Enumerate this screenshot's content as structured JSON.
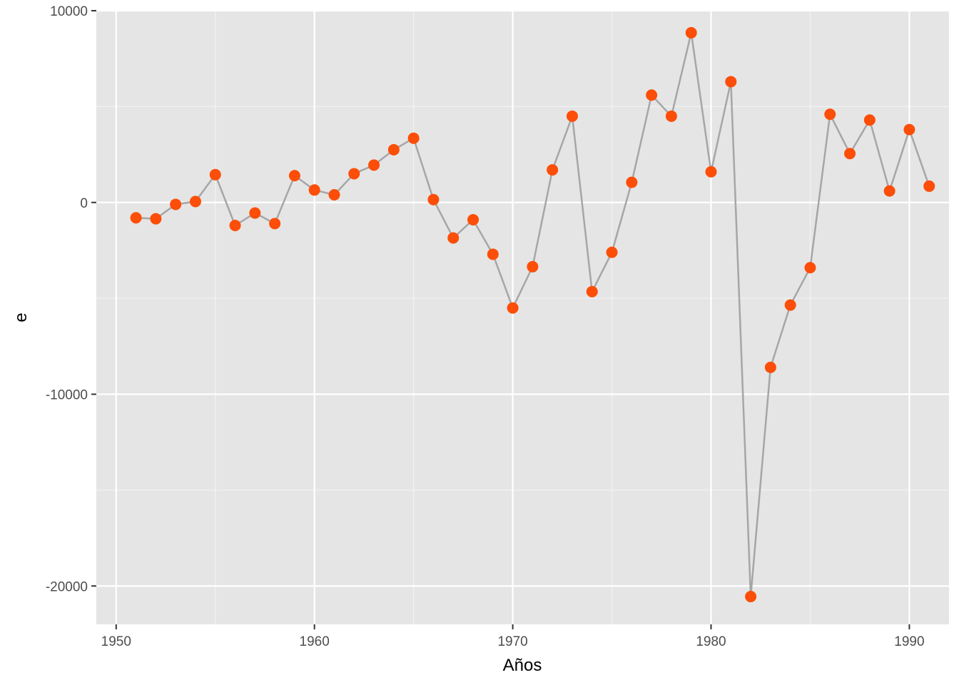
{
  "chart_data": {
    "type": "line",
    "title": "",
    "xlabel": "Años",
    "ylabel": "e",
    "xlim": [
      1949,
      1992
    ],
    "ylim": [
      -22000,
      10000
    ],
    "x_ticks": [
      1950,
      1960,
      1970,
      1980,
      1990
    ],
    "x_tick_labels": [
      "1950",
      "1960",
      "1970",
      "1980",
      "1990"
    ],
    "y_ticks": [
      10000,
      0,
      -10000,
      -20000
    ],
    "y_tick_labels": [
      "10000",
      "0",
      "-10000",
      "-20000"
    ],
    "grid": true,
    "line_color": "#a6a6a6",
    "point_color": "#fc4e08",
    "panel_color": "#e5e5e5",
    "series": [
      {
        "x": [
          1951,
          1952,
          1953,
          1954,
          1955,
          1956,
          1957,
          1958,
          1959,
          1960,
          1961,
          1962,
          1963,
          1964,
          1965,
          1966,
          1967,
          1968,
          1969,
          1970,
          1971,
          1972,
          1973,
          1974,
          1975,
          1976,
          1977,
          1978,
          1979,
          1980,
          1981,
          1982,
          1983,
          1984,
          1985,
          1986,
          1987,
          1988,
          1989,
          1990,
          1991
        ],
        "values": [
          -800,
          -850,
          -100,
          50,
          1450,
          -1200,
          -550,
          -1100,
          1400,
          650,
          400,
          1500,
          1950,
          2750,
          3350,
          150,
          -1850,
          -900,
          -2700,
          -5500,
          -3350,
          1700,
          4500,
          -4650,
          -2600,
          1050,
          5600,
          4500,
          8850,
          1600,
          6300,
          -20550,
          -8600,
          -5350,
          -3400,
          4600,
          2550,
          4300,
          600,
          3800,
          850
        ]
      }
    ]
  }
}
